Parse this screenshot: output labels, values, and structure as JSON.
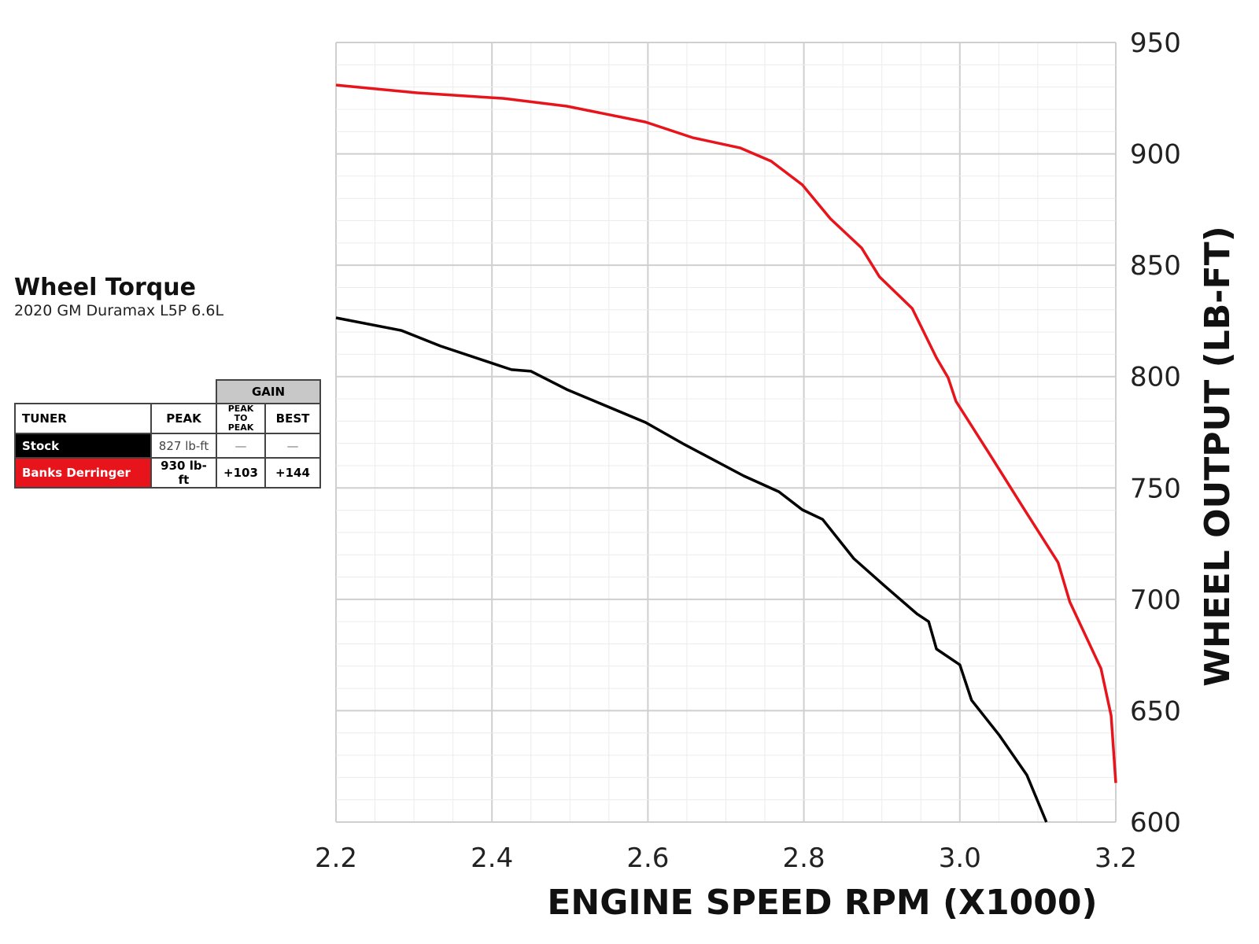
{
  "header": {
    "title": "Wheel Torque",
    "subtitle": "2020 GM Duramax L5P 6.6L"
  },
  "legend_table": {
    "gain_header": "GAIN",
    "columns": [
      "TUNER",
      "PEAK",
      "PEAK TO PEAK",
      "BEST"
    ],
    "rows": [
      {
        "tuner": "Stock",
        "peak": "827 lb-ft",
        "peak_to_peak": "—",
        "best": "—",
        "color": "#000000"
      },
      {
        "tuner": "Banks Derringer",
        "peak": "930 lb-ft",
        "peak_to_peak": "+103",
        "best": "+144",
        "color": "#e8141c"
      }
    ]
  },
  "chart_data": {
    "type": "line",
    "title": "Wheel Torque",
    "xlabel": "ENGINE SPEED RPM (X1000)",
    "ylabel": "WHEEL OUTPUT (LB-FT)",
    "xlim": [
      2.2,
      3.2
    ],
    "ylim": [
      600,
      950
    ],
    "xticks": [
      "2.2",
      "2.4",
      "2.6",
      "2.8",
      "3.0",
      "3.2"
    ],
    "yticks": [
      "600",
      "650",
      "700",
      "750",
      "800",
      "850",
      "900",
      "950"
    ],
    "grid": true,
    "series": [
      {
        "name": "Stock",
        "color": "#000000",
        "x": [
          2.2,
          2.284,
          2.334,
          2.425,
          2.45,
          2.496,
          2.597,
          2.647,
          2.723,
          2.768,
          2.798,
          2.824,
          2.864,
          2.904,
          2.945,
          2.96,
          2.97,
          3.0,
          3.015,
          3.051,
          3.086,
          3.111
        ],
        "y": [
          826.4,
          820.7,
          813.7,
          803.1,
          802.4,
          794.2,
          779.4,
          769.5,
          755.4,
          748.3,
          740.2,
          735.9,
          718.3,
          705.9,
          693.5,
          690,
          677.7,
          670.6,
          654.7,
          638.8,
          621.1,
          600
        ]
      },
      {
        "name": "Banks Derringer",
        "color": "#e8141c",
        "x": [
          2.2,
          2.304,
          2.415,
          2.496,
          2.597,
          2.657,
          2.718,
          2.758,
          2.798,
          2.834,
          2.874,
          2.897,
          2.939,
          2.97,
          2.985,
          2.995,
          3.04,
          3.081,
          3.126,
          3.141,
          3.181,
          3.194,
          3.2
        ],
        "y": [
          930.9,
          927.4,
          924.9,
          921.4,
          914.3,
          907.3,
          902.7,
          896.7,
          886.1,
          870.9,
          857.8,
          844.8,
          830.6,
          808.4,
          799.5,
          789,
          764.2,
          741.3,
          716.5,
          698.9,
          668.9,
          647.7,
          617.6
        ]
      }
    ]
  }
}
